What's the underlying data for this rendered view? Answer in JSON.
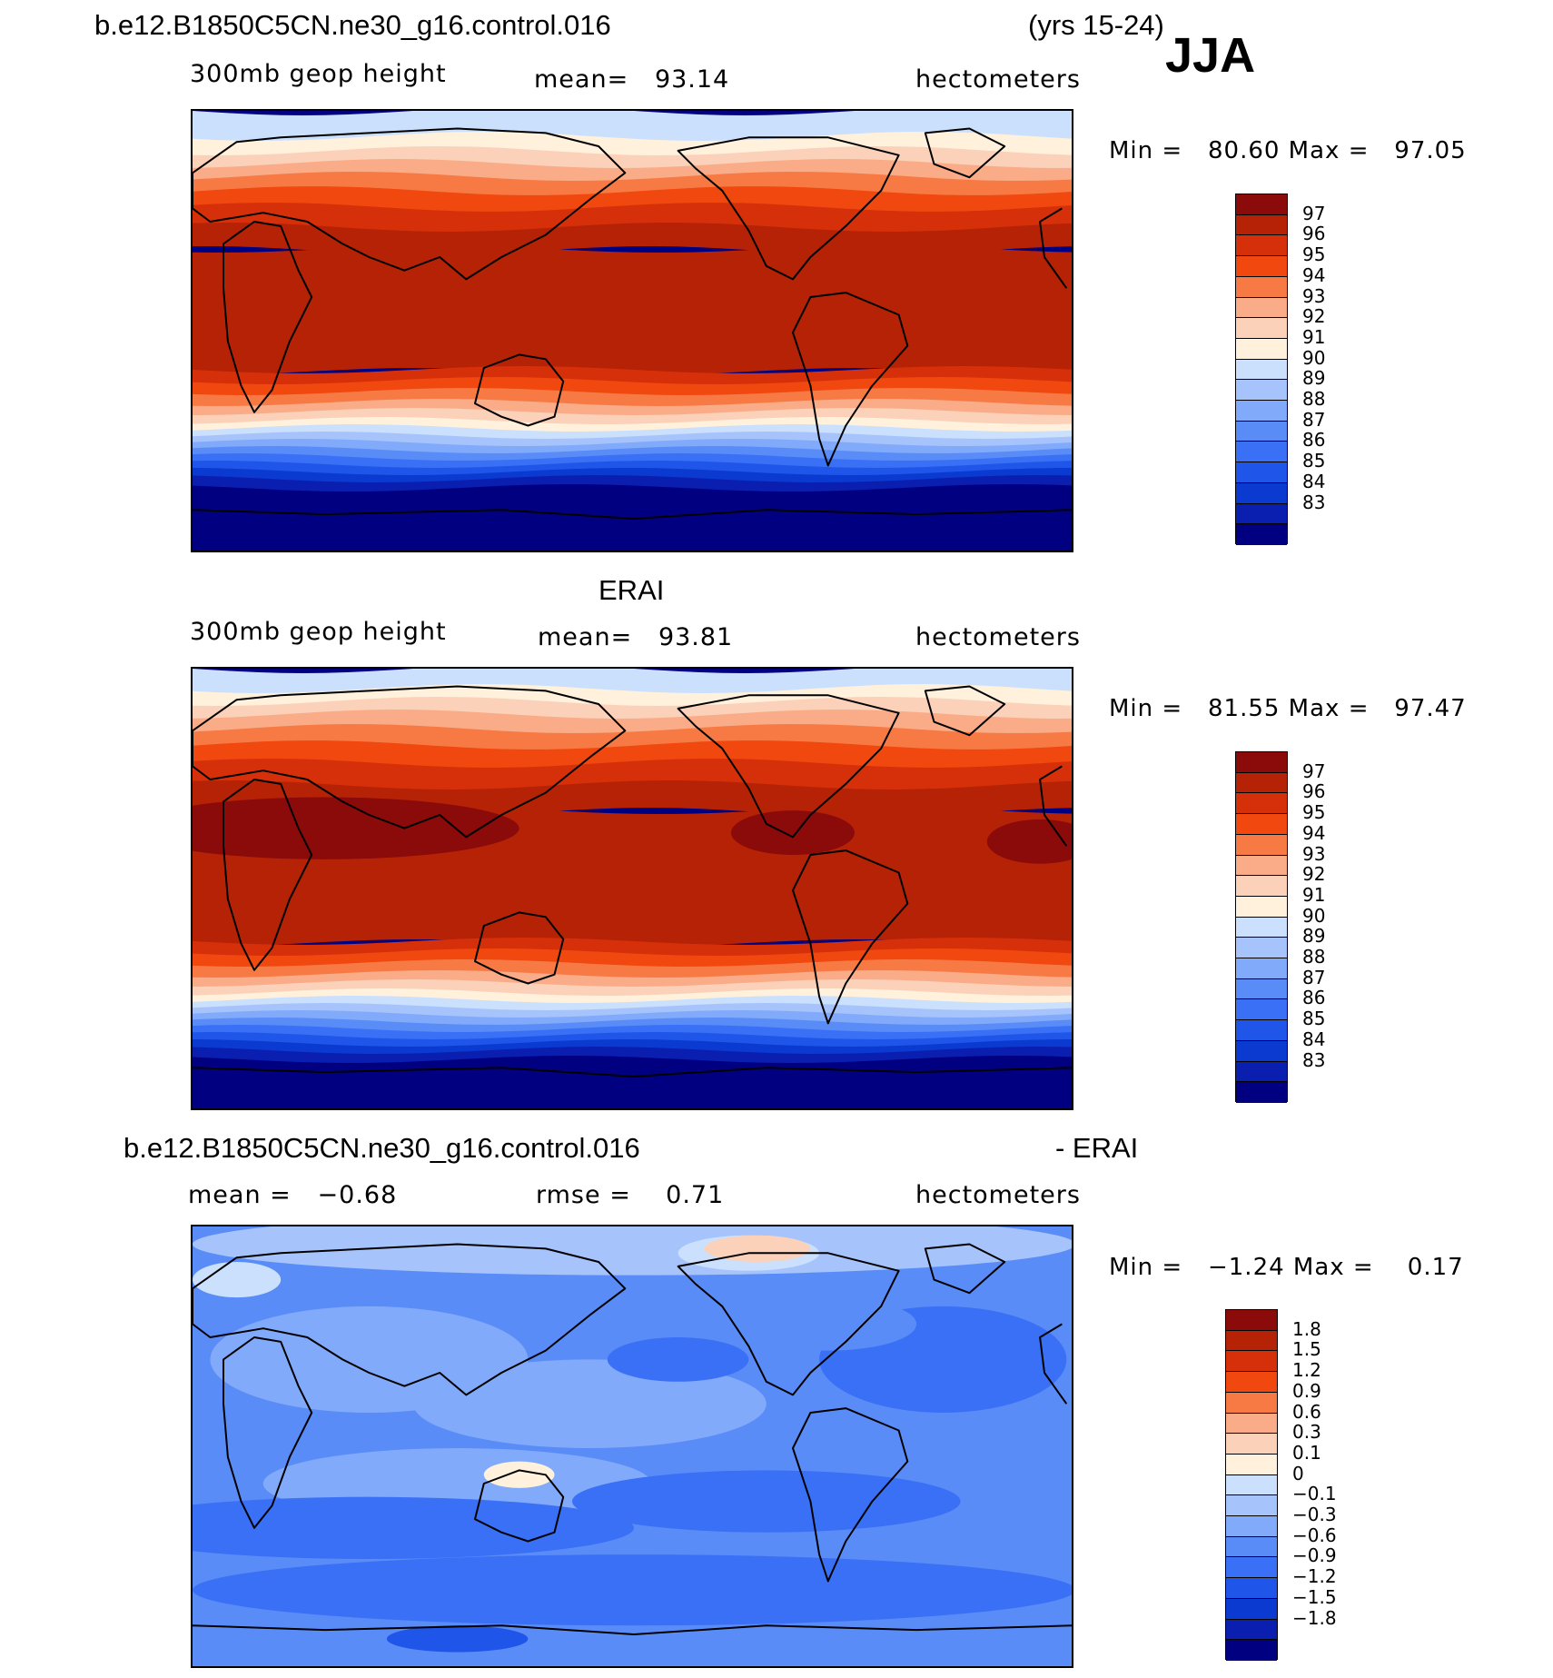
{
  "header": {
    "case_title": "b.e12.B1850C5CN.ne30_g16.control.016",
    "years": "(yrs 15-24)",
    "season": "JJA"
  },
  "colors": {
    "field": [
      "#000080",
      "#0a1fb0",
      "#0a3ad0",
      "#1f55e8",
      "#3a70f5",
      "#5a8cf8",
      "#82aafa",
      "#a6c4fb",
      "#cbe0fd",
      "#fff1dc",
      "#fbd1ba",
      "#f9ac87",
      "#f77a45",
      "#f0480f",
      "#d6300a",
      "#b52206",
      "#8b0a0a"
    ],
    "diff": [
      "#000080",
      "#0a1fb0",
      "#0a3ad0",
      "#1f55e8",
      "#3a70f5",
      "#5a8cf8",
      "#82aafa",
      "#a6c4fb",
      "#cbe0fd",
      "#fff1dc",
      "#fbd1ba",
      "#f9ac87",
      "#f77a45",
      "#f0480f",
      "#d6300a",
      "#b52206",
      "#8b0a0a"
    ]
  },
  "chart_data": [
    {
      "type": "heatmap",
      "panel": "model",
      "label": "300mb geop height",
      "mean_text": "mean=   93.14",
      "units": "hectometers",
      "min_max_text": "Min =   80.60 Max =   97.05",
      "min": 80.6,
      "max": 97.05,
      "mean": 93.14,
      "levels": [
        "97",
        "96",
        "95",
        "94",
        "93",
        "92",
        "91",
        "90",
        "89",
        "88",
        "87",
        "86",
        "85",
        "84",
        "83"
      ],
      "level_values": [
        97,
        96,
        95,
        94,
        93,
        92,
        91,
        90,
        89,
        88,
        87,
        86,
        85,
        84,
        83
      ]
    },
    {
      "type": "heatmap",
      "panel": "observations",
      "title": "ERAI",
      "label": "300mb geop height",
      "mean_text": "mean=   93.81",
      "units": "hectometers",
      "min_max_text": "Min =   81.55 Max =   97.47",
      "min": 81.55,
      "max": 97.47,
      "mean": 93.81,
      "levels": [
        "97",
        "96",
        "95",
        "94",
        "93",
        "92",
        "91",
        "90",
        "89",
        "88",
        "87",
        "86",
        "85",
        "84",
        "83"
      ],
      "level_values": [
        97,
        96,
        95,
        94,
        93,
        92,
        91,
        90,
        89,
        88,
        87,
        86,
        85,
        84,
        83
      ]
    },
    {
      "type": "heatmap",
      "panel": "difference",
      "title_left": "b.e12.B1850C5CN.ne30_g16.control.016",
      "title_right": "- ERAI",
      "mean_text": "mean =   −0.68",
      "rmse_text": "rmse =    0.71",
      "units": "hectometers",
      "min_max_text": "Min =   −1.24 Max =    0.17",
      "min": -1.24,
      "max": 0.17,
      "mean": -0.68,
      "rmse": 0.71,
      "levels": [
        "1.8",
        "1.5",
        "1.2",
        "0.9",
        "0.6",
        "0.3",
        "0.1",
        "0",
        "−0.1",
        "−0.3",
        "−0.6",
        "−0.9",
        "−1.2",
        "−1.5",
        "−1.8"
      ],
      "level_values": [
        1.8,
        1.5,
        1.2,
        0.9,
        0.6,
        0.3,
        0.1,
        0,
        -0.1,
        -0.3,
        -0.6,
        -0.9,
        -1.2,
        -1.5,
        -1.8
      ]
    }
  ]
}
